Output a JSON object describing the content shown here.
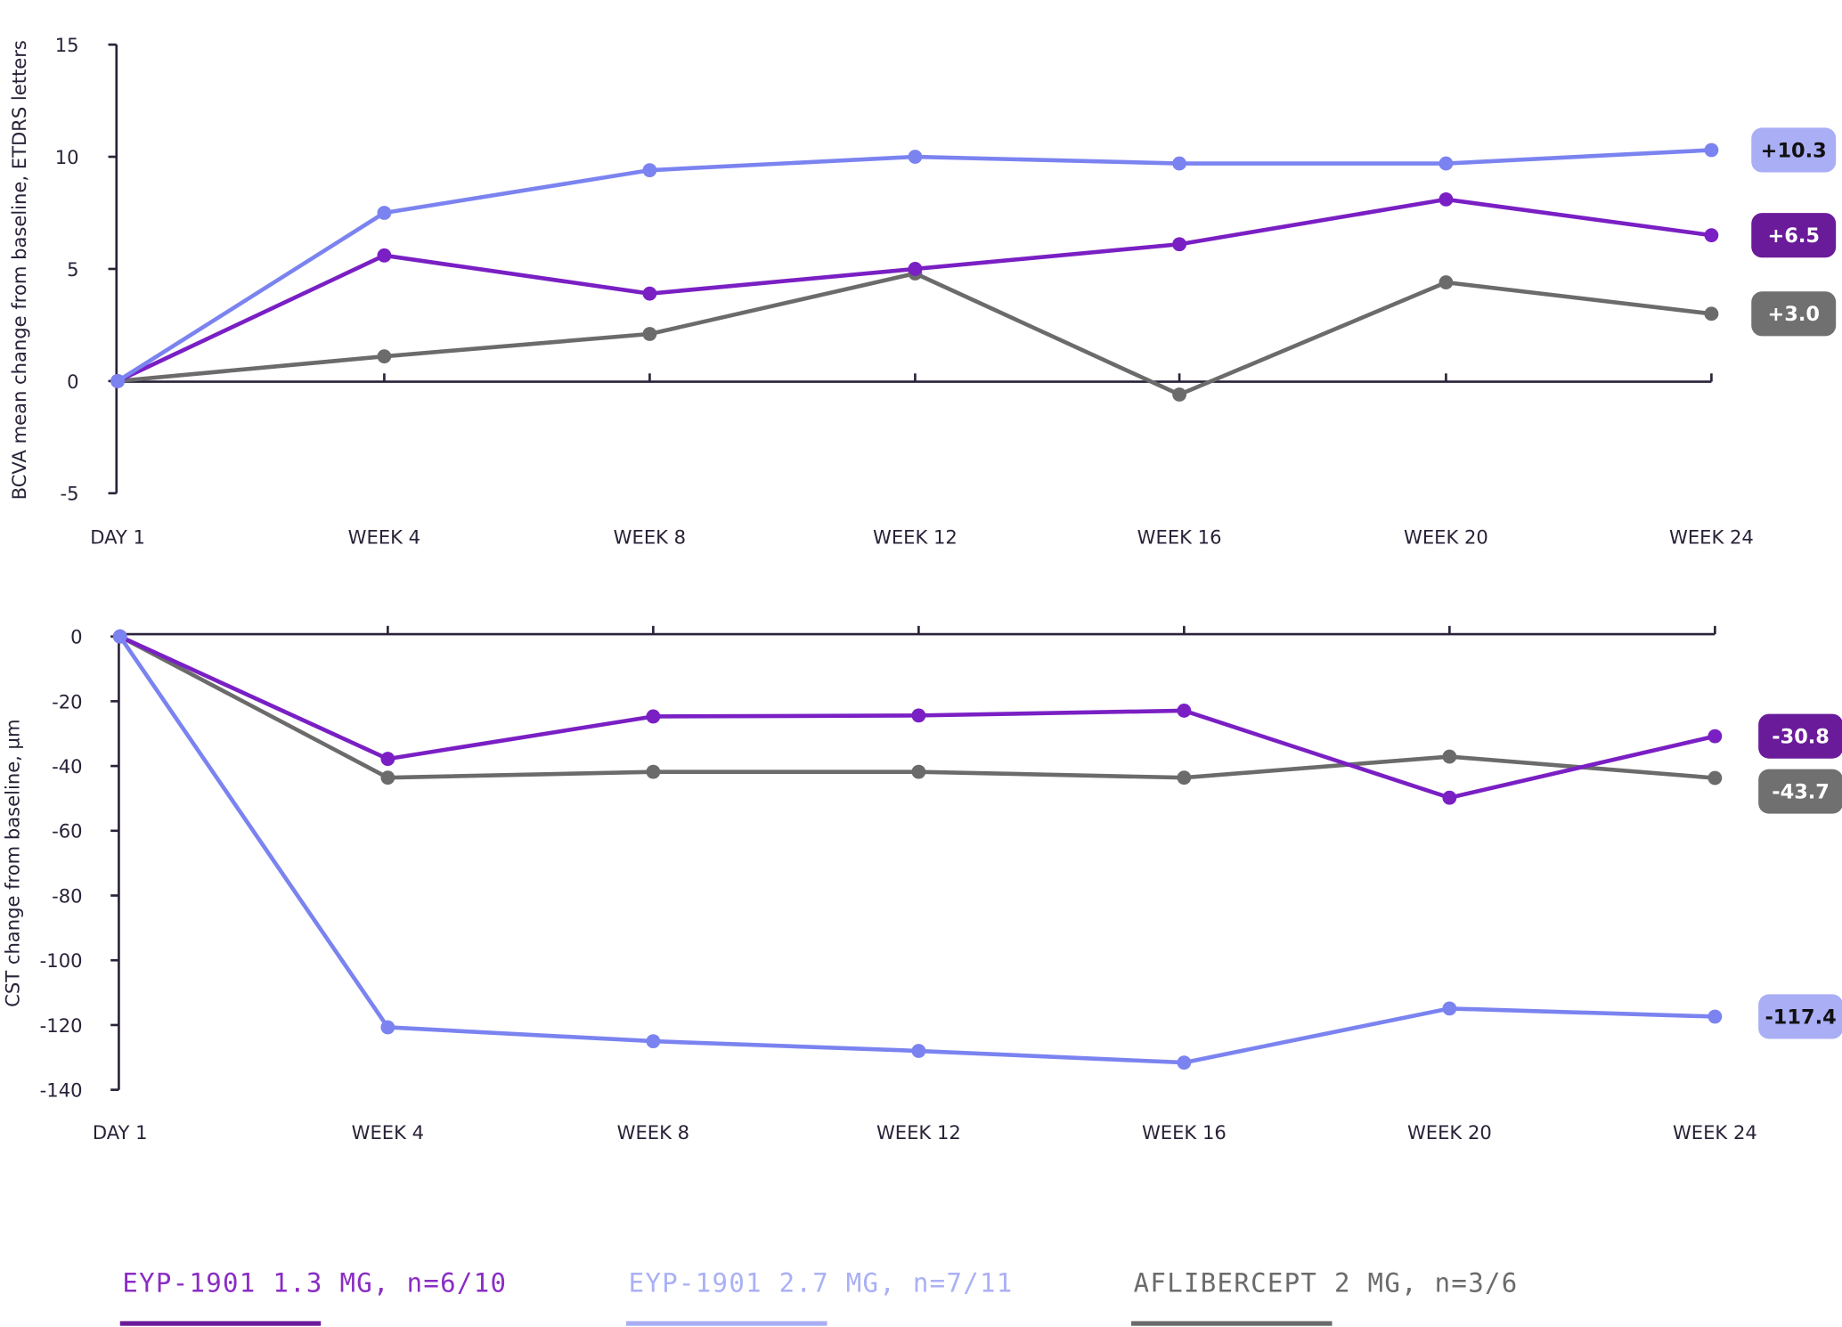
{
  "chart_data": [
    {
      "type": "line",
      "ylabel": "BCVA mean change from baseline, ETDRS letters",
      "xlabel": "",
      "categories": [
        "DAY 1",
        "WEEK 4",
        "WEEK 8",
        "WEEK 12",
        "WEEK 16",
        "WEEK 20",
        "WEEK 24"
      ],
      "ylim": [
        -5,
        15
      ],
      "yticks": [
        "15",
        "10",
        "5",
        "0",
        "-5"
      ],
      "ytick_values": [
        15,
        10,
        5,
        0,
        -5
      ],
      "grid": false,
      "series": [
        {
          "key": "mid",
          "values": [
            0,
            5.6,
            3.9,
            5.0,
            6.1,
            8.1,
            6.5
          ],
          "end_label": "+6.5",
          "color": "#7a1fc4",
          "label_bg": "#6a1b9a",
          "label_fg": "#ffffff"
        },
        {
          "key": "high",
          "values": [
            0,
            7.5,
            9.4,
            10.0,
            9.7,
            9.7,
            10.3
          ],
          "end_label": "+10.3",
          "color": "#7b83f0",
          "label_bg": "#a9aef5",
          "label_fg": "#111111"
        },
        {
          "key": "afl",
          "values": [
            0,
            1.1,
            2.1,
            4.8,
            -0.6,
            4.4,
            3.0
          ],
          "end_label": "+3.0",
          "color": "#6b6b6b",
          "label_bg": "#707070",
          "label_fg": "#ffffff"
        }
      ]
    },
    {
      "type": "line",
      "ylabel": "CST change from baseline, µm",
      "xlabel": "",
      "categories": [
        "DAY 1",
        "WEEK 4",
        "WEEK 8",
        "WEEK 12",
        "WEEK 16",
        "WEEK 20",
        "WEEK 24"
      ],
      "ylim": [
        -140,
        0
      ],
      "yticks": [
        "0",
        "-20",
        "-40",
        "-60",
        "-80",
        "-100",
        "-120",
        "-140"
      ],
      "ytick_values": [
        0,
        -20,
        -40,
        -60,
        -80,
        -100,
        -120,
        -140
      ],
      "grid": false,
      "series": [
        {
          "key": "mid",
          "values": [
            0,
            -37.8,
            -24.7,
            -24.4,
            -22.9,
            -49.8,
            -30.8
          ],
          "end_label": "-30.8",
          "color": "#7a1fc4",
          "label_bg": "#6a1b9a",
          "label_fg": "#ffffff"
        },
        {
          "key": "high",
          "values": [
            0,
            -120.7,
            -125,
            -128,
            -131.6,
            -114.9,
            -117.4
          ],
          "end_label": "-117.4",
          "color": "#7b83f0",
          "label_bg": "#a9aef5",
          "label_fg": "#111111"
        },
        {
          "key": "afl",
          "values": [
            0,
            -43.6,
            -41.8,
            -41.8,
            -43.6,
            -37.1,
            -43.7
          ],
          "end_label": "-43.7",
          "color": "#6b6b6b",
          "label_bg": "#707070",
          "label_fg": "#ffffff"
        }
      ]
    }
  ],
  "legend": {
    "placement": "bottom",
    "items": [
      {
        "name": "EYP-1901 1.3 MG, n=6/10",
        "text_color": "#8a2cc4",
        "bar_color": "#6a1b9a"
      },
      {
        "name": "EYP-1901 2.7 MG, n=7/11",
        "text_color": "#aab0f5",
        "bar_color": "#a9aef5"
      },
      {
        "name": "AFLIBERCEPT 2 MG, n=3/6",
        "text_color": "#6b6b6b",
        "bar_color": "#6b6b6b"
      }
    ]
  }
}
